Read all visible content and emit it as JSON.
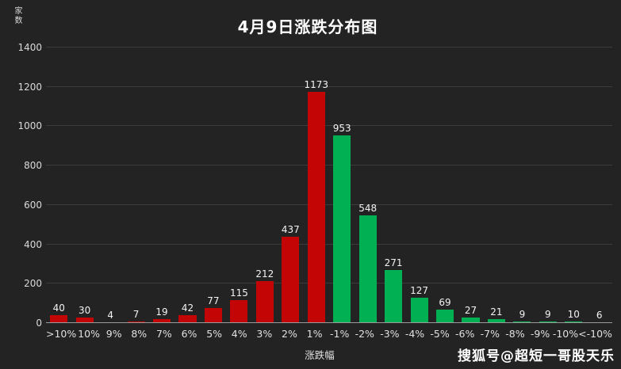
{
  "header": {
    "title": "4月9日涨跌分布图"
  },
  "axes": {
    "y_label": "家数",
    "x_label": "涨跌幅"
  },
  "watermark": {
    "text": "搜狐号@超短一哥股天乐"
  },
  "colors": {
    "positive_bar": "#c40505",
    "negative_bar": "#00b052",
    "background": "#232323",
    "gridline": "#3c3c3c",
    "axis_line": "#9b9b9b",
    "text": "#ffffff"
  },
  "chart_data": {
    "type": "bar",
    "title": "4月9日涨跌分布图",
    "xlabel": "涨跌幅",
    "ylabel": "家数",
    "categories": [
      ">10%",
      "10%",
      "9%",
      "8%",
      "7%",
      "6%",
      "5%",
      "4%",
      "3%",
      "2%",
      "1%",
      "-1%",
      "-2%",
      "-3%",
      "-4%",
      "-5%",
      "-6%",
      "-7%",
      "-8%",
      "-9%",
      "-10%",
      "<-10%"
    ],
    "values": [
      40,
      30,
      4,
      7,
      19,
      42,
      77,
      115,
      212,
      437,
      1173,
      953,
      548,
      271,
      127,
      69,
      27,
      21,
      9,
      9,
      10,
      6
    ],
    "bar_colors_rule": "positive categories red, negative categories green",
    "ylim": [
      0,
      1400
    ],
    "yticks": [
      0,
      200,
      400,
      600,
      800,
      1000,
      1200,
      1400
    ],
    "grid": true,
    "legend": false,
    "data_labels": true
  }
}
